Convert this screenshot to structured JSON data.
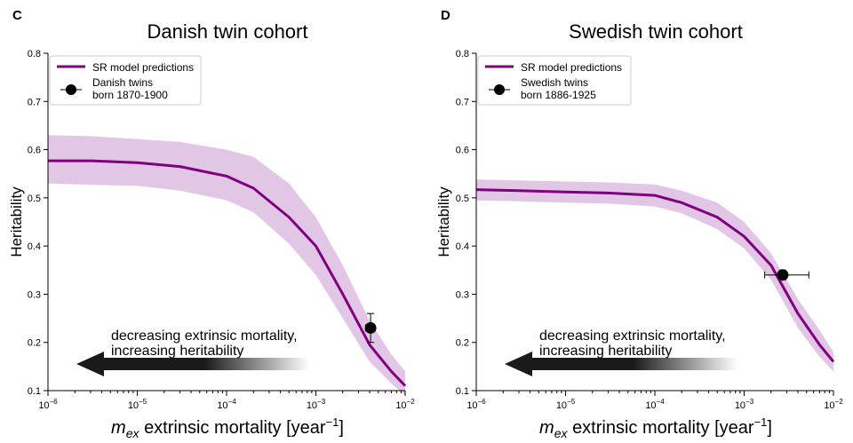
{
  "colors": {
    "line": "#800080",
    "band": "#e2c6e6",
    "marker": "#000000",
    "arrow": "#1a1a1a",
    "axis": "#000000"
  },
  "chart_data": [
    {
      "panel_label": "C",
      "type": "line",
      "title": "Danish twin cohort",
      "xlabel_symbol": "m",
      "xlabel_subscript": "ex",
      "xlabel_text": "extrinsic mortality [year",
      "xlabel_exponent": "−1",
      "xlabel_close": "]",
      "ylabel": "Heritability",
      "xscale": "log",
      "xlim": [
        1e-06,
        0.01
      ],
      "ylim": [
        0.1,
        0.8
      ],
      "xticks": [
        {
          "value": 1e-06,
          "base": "10",
          "exp": "−6"
        },
        {
          "value": 1e-05,
          "base": "10",
          "exp": "−5"
        },
        {
          "value": 0.0001,
          "base": "10",
          "exp": "−4"
        },
        {
          "value": 0.001,
          "base": "10",
          "exp": "−3"
        },
        {
          "value": 0.01,
          "base": "10",
          "exp": "−2"
        }
      ],
      "yticks": [
        "0.1",
        "0.2",
        "0.3",
        "0.4",
        "0.5",
        "0.6",
        "0.7",
        "0.8"
      ],
      "series": [
        {
          "name": "SR model predictions",
          "x": [
            1e-06,
            3e-06,
            1e-05,
            3e-05,
            0.0001,
            0.0002,
            0.0005,
            0.001,
            0.002,
            0.004,
            0.007,
            0.01
          ],
          "y": [
            0.577,
            0.577,
            0.573,
            0.565,
            0.545,
            0.52,
            0.46,
            0.4,
            0.3,
            0.195,
            0.14,
            0.11
          ],
          "upper": [
            0.63,
            0.628,
            0.622,
            0.616,
            0.6,
            0.585,
            0.53,
            0.46,
            0.36,
            0.245,
            0.175,
            0.14
          ],
          "lower": [
            0.53,
            0.527,
            0.525,
            0.515,
            0.495,
            0.47,
            0.405,
            0.34,
            0.25,
            0.16,
            0.115,
            0.09
          ]
        }
      ],
      "points": [
        {
          "name": "Danish twins born 1870-1900",
          "x": 0.0041,
          "y": 0.23,
          "yerr_low": 0.2,
          "yerr_high": 0.26,
          "xerr_low": 0.0036,
          "xerr_high": 0.0046
        }
      ],
      "legend": {
        "position": "top-left",
        "line_label": "SR model predictions",
        "point_label_1": "Danish twins",
        "point_label_2": "born 1870-1900"
      },
      "annotation": {
        "line1": "decreasing extrinsic mortality,",
        "line2": "increasing heritability"
      }
    },
    {
      "panel_label": "D",
      "type": "line",
      "title": "Swedish twin cohort",
      "xlabel_symbol": "m",
      "xlabel_subscript": "ex",
      "xlabel_text": "extrinsic mortality [year",
      "xlabel_exponent": "−1",
      "xlabel_close": "]",
      "ylabel": "Heritability",
      "xscale": "log",
      "xlim": [
        1e-06,
        0.01
      ],
      "ylim": [
        0.1,
        0.8
      ],
      "xticks": [
        {
          "value": 1e-06,
          "base": "10",
          "exp": "−6"
        },
        {
          "value": 1e-05,
          "base": "10",
          "exp": "−5"
        },
        {
          "value": 0.0001,
          "base": "10",
          "exp": "−4"
        },
        {
          "value": 0.001,
          "base": "10",
          "exp": "−3"
        },
        {
          "value": 0.01,
          "base": "10",
          "exp": "−2"
        }
      ],
      "yticks": [
        "0.1",
        "0.2",
        "0.3",
        "0.4",
        "0.5",
        "0.6",
        "0.7",
        "0.8"
      ],
      "series": [
        {
          "name": "SR model predictions",
          "x": [
            1e-06,
            3e-06,
            1e-05,
            3e-05,
            0.0001,
            0.0002,
            0.0005,
            0.001,
            0.002,
            0.004,
            0.007,
            0.01
          ],
          "y": [
            0.517,
            0.515,
            0.512,
            0.51,
            0.505,
            0.49,
            0.46,
            0.42,
            0.36,
            0.26,
            0.195,
            0.16
          ],
          "upper": [
            0.538,
            0.536,
            0.534,
            0.532,
            0.528,
            0.515,
            0.49,
            0.45,
            0.385,
            0.29,
            0.225,
            0.18
          ],
          "lower": [
            0.495,
            0.493,
            0.49,
            0.488,
            0.482,
            0.468,
            0.435,
            0.395,
            0.33,
            0.23,
            0.17,
            0.14
          ]
        }
      ],
      "points": [
        {
          "name": "Swedish twins born 1886-1925",
          "x": 0.0027,
          "y": 0.34,
          "yerr_low": 0.33,
          "yerr_high": 0.35,
          "xerr_low": 0.0017,
          "xerr_high": 0.0053
        }
      ],
      "legend": {
        "position": "top-left",
        "line_label": "SR model predictions",
        "point_label_1": "Swedish twins",
        "point_label_2": "born 1886-1925"
      },
      "annotation": {
        "line1": "decreasing extrinsic mortality,",
        "line2": "increasing heritability"
      }
    }
  ]
}
